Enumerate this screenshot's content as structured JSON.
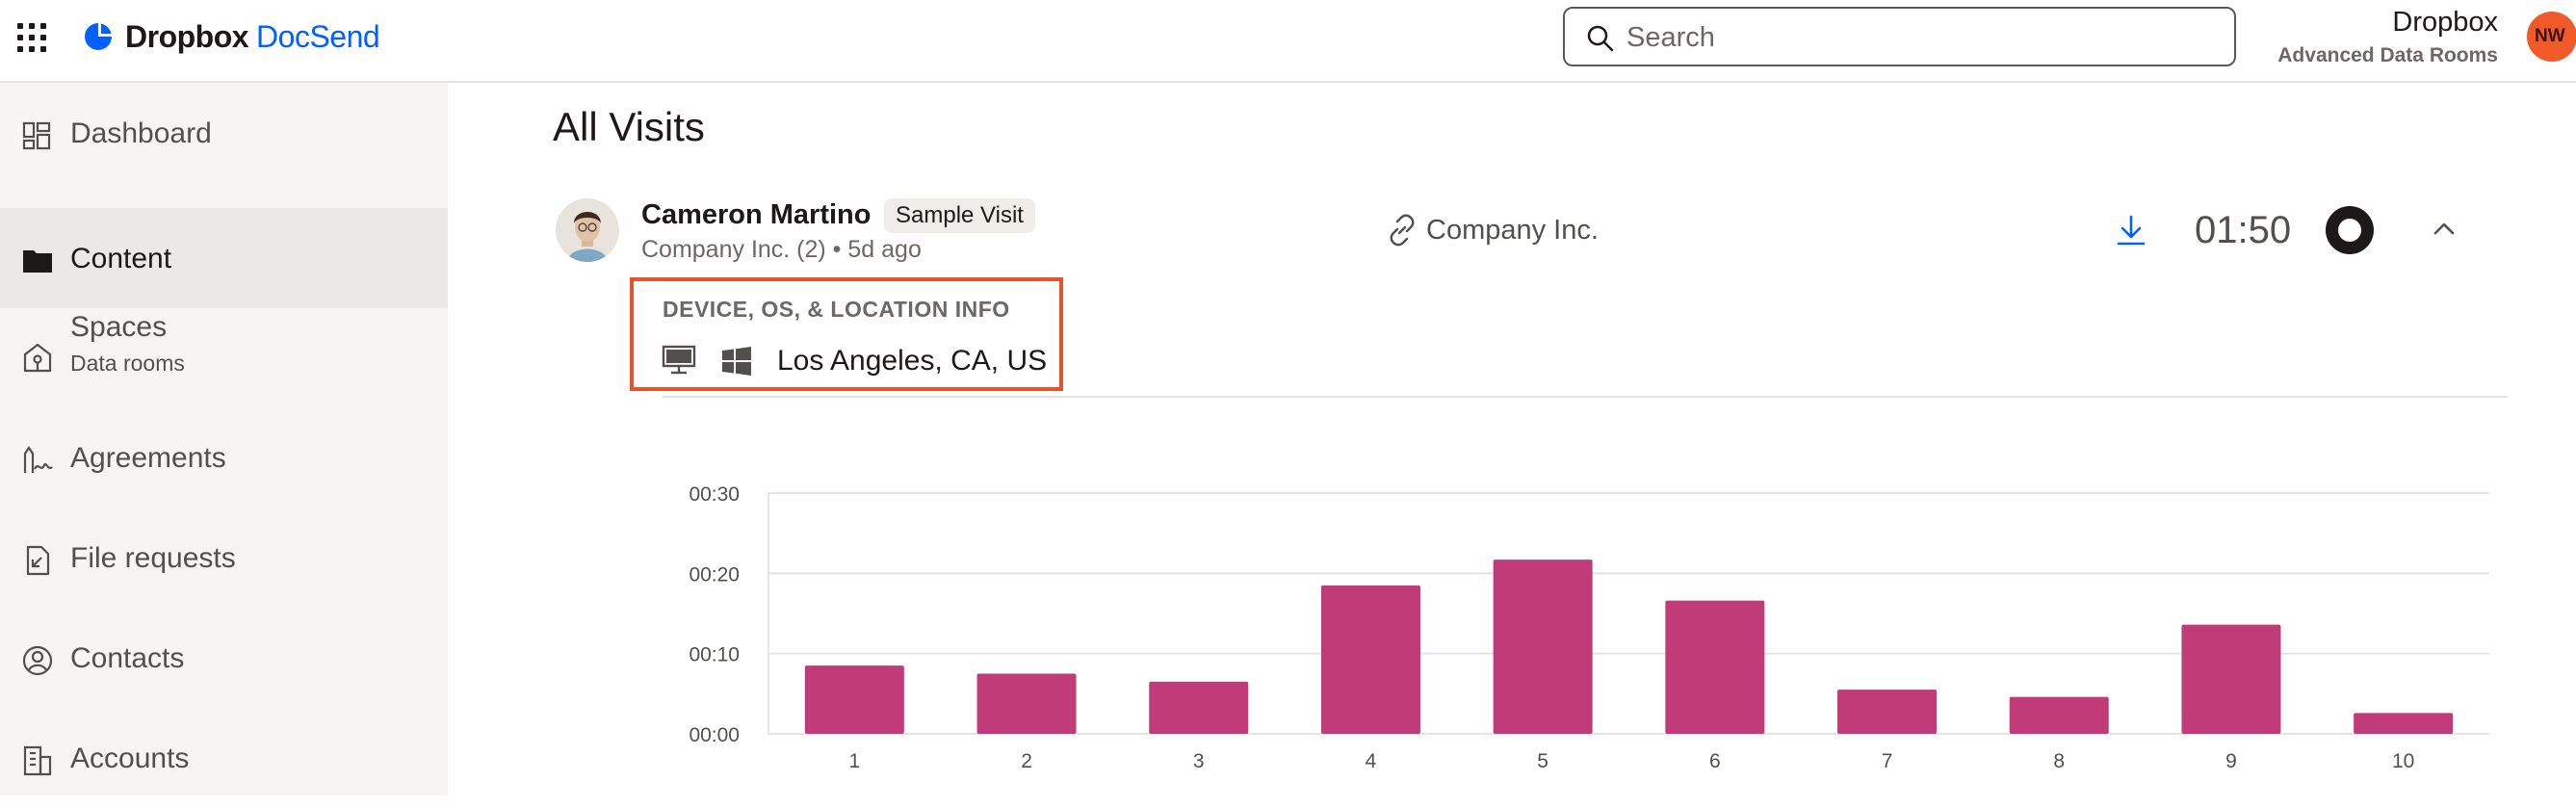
{
  "header": {
    "brand_name": "Dropbox",
    "brand_product": "DocSend",
    "search_placeholder": "Search",
    "account_name": "Dropbox",
    "account_plan": "Advanced Data Rooms",
    "avatar_initials": "NW",
    "brand_color": "#0061fe",
    "avatar_color": "#f05a28"
  },
  "sidebar": {
    "items": [
      {
        "label": "Dashboard",
        "icon": "dashboard-icon"
      },
      {
        "label": "Content",
        "icon": "folder-icon",
        "active": true
      },
      {
        "label": "Spaces",
        "sublabel": "Data rooms",
        "icon": "spaces-icon"
      },
      {
        "label": "Agreements",
        "icon": "agreement-icon"
      },
      {
        "label": "File requests",
        "icon": "file-request-icon"
      },
      {
        "label": "Contacts",
        "icon": "contact-icon"
      },
      {
        "label": "Accounts",
        "icon": "accounts-icon"
      }
    ]
  },
  "main": {
    "title": "All Visits",
    "visit": {
      "visitor_name": "Cameron Martino",
      "badge": "Sample Visit",
      "meta": "Company Inc. (2) • 5d ago",
      "link_name": "Company Inc.",
      "duration": "01:50",
      "info_title": "DEVICE, OS, & LOCATION INFO",
      "location": "Los Angeles, CA, US",
      "device_icon": "desktop-icon",
      "os_icon": "windows-icon",
      "highlight_color": "#e5532d"
    }
  },
  "chart_data": {
    "type": "bar",
    "categories": [
      "1",
      "2",
      "3",
      "4",
      "5",
      "6",
      "7",
      "8",
      "9",
      "10"
    ],
    "values": [
      8.5,
      7.5,
      6.5,
      18.5,
      21.7,
      16.6,
      5.5,
      4.6,
      13.6,
      2.6
    ],
    "value_unit": "seconds",
    "yticks": [
      "00:00",
      "00:10",
      "00:20",
      "00:30"
    ],
    "ylim": [
      0,
      30
    ],
    "grid": true,
    "bar_color": "#c03b77"
  }
}
